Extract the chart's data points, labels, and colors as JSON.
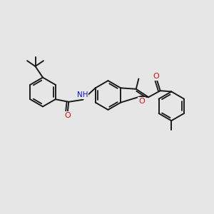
{
  "bg_color": "#e6e6e6",
  "bond_color": "#1a1a1a",
  "bond_width": 1.4,
  "N_color": "#1414cc",
  "O_color": "#cc1414",
  "figsize": [
    3.0,
    3.0
  ],
  "dpi": 100,
  "xlim": [
    0,
    10
  ],
  "ylim": [
    0,
    10
  ]
}
